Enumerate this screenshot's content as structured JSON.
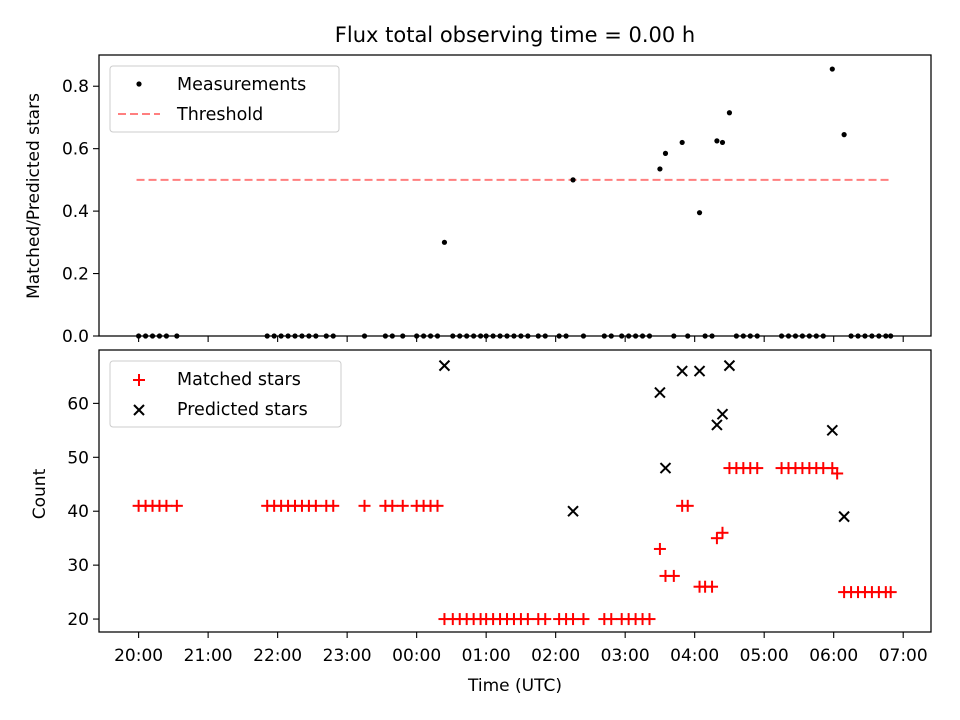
{
  "chart_data": [
    {
      "type": "scatter",
      "title": "Flux total observing time = 0.00 h",
      "xlabel": "",
      "ylabel": "Matched/Predicted stars",
      "ylim": [
        0,
        0.9
      ],
      "yticks": [
        0.0,
        0.2,
        0.4,
        0.6,
        0.8
      ],
      "ytick_labels": [
        "0.0",
        "0.2",
        "0.4",
        "0.6",
        "0.8"
      ],
      "xlim_hours": [
        19.43,
        31.4
      ],
      "grid": false,
      "legend_position": "top-left",
      "series": [
        {
          "name": "Measurements",
          "kind": "points",
          "color": "#000000",
          "x": [
            20.0,
            20.1,
            20.2,
            20.3,
            20.4,
            20.55,
            21.85,
            21.95,
            22.05,
            22.15,
            22.25,
            22.35,
            22.45,
            22.55,
            22.7,
            22.8,
            23.25,
            23.55,
            23.65,
            23.8,
            24.0,
            24.1,
            24.2,
            24.3,
            24.4,
            24.52,
            24.62,
            24.72,
            24.82,
            24.92,
            25.0,
            25.1,
            25.2,
            25.3,
            25.4,
            25.5,
            25.6,
            25.75,
            25.85,
            26.05,
            26.15,
            26.25,
            26.4,
            26.7,
            26.8,
            26.95,
            27.05,
            27.15,
            27.25,
            27.35,
            27.5,
            27.58,
            27.7,
            27.82,
            27.9,
            28.07,
            28.15,
            28.25,
            28.32,
            28.4,
            28.5,
            28.6,
            28.7,
            28.8,
            28.9,
            29.25,
            29.35,
            29.45,
            29.55,
            29.65,
            29.75,
            29.85,
            29.98,
            30.15,
            30.25,
            30.35,
            30.45,
            30.55,
            30.65,
            30.75,
            30.82
          ],
          "y": [
            0,
            0,
            0,
            0,
            0,
            0,
            0,
            0,
            0,
            0,
            0,
            0,
            0,
            0,
            0,
            0,
            0,
            0,
            0,
            0,
            0,
            0,
            0,
            0,
            0.3,
            0,
            0,
            0,
            0,
            0,
            0,
            0,
            0,
            0,
            0,
            0,
            0,
            0,
            0,
            0,
            0,
            0.5,
            0,
            0,
            0,
            0,
            0,
            0,
            0,
            0,
            0.535,
            0.585,
            0,
            0.62,
            0,
            0.395,
            0,
            0,
            0.625,
            0.62,
            0.715,
            0,
            0,
            0,
            0,
            0,
            0,
            0,
            0,
            0,
            0,
            0,
            0.855,
            0.645,
            0,
            0,
            0,
            0,
            0,
            0,
            0
          ]
        },
        {
          "name": "Threshold",
          "kind": "dashed-line",
          "color": "#ff7f7f",
          "x": [
            19.97,
            30.82
          ],
          "y": [
            0.5,
            0.5
          ]
        }
      ]
    },
    {
      "type": "scatter",
      "title": "",
      "xlabel": "Time (UTC)",
      "ylabel": "Count",
      "ylim": [
        17.6,
        69.9
      ],
      "yticks": [
        20,
        30,
        40,
        50,
        60
      ],
      "ytick_labels": [
        "20",
        "30",
        "40",
        "50",
        "60"
      ],
      "xlim_hours": [
        19.43,
        31.4
      ],
      "xticks_hours": [
        20,
        21,
        22,
        23,
        24,
        25,
        26,
        27,
        28,
        29,
        30,
        31
      ],
      "xtick_labels": [
        "20:00",
        "21:00",
        "22:00",
        "23:00",
        "00:00",
        "01:00",
        "02:00",
        "03:00",
        "04:00",
        "05:00",
        "06:00",
        "07:00"
      ],
      "grid": false,
      "legend_position": "top-left",
      "series": [
        {
          "name": "Matched stars",
          "kind": "plus",
          "color": "#ff0000",
          "x": [
            20.0,
            20.1,
            20.2,
            20.3,
            20.4,
            20.55,
            21.85,
            21.95,
            22.05,
            22.15,
            22.25,
            22.35,
            22.45,
            22.55,
            22.7,
            22.8,
            23.25,
            23.55,
            23.65,
            23.8,
            24.0,
            24.1,
            24.2,
            24.3,
            24.4,
            24.52,
            24.62,
            24.72,
            24.82,
            24.92,
            25.0,
            25.1,
            25.2,
            25.3,
            25.4,
            25.5,
            25.6,
            25.75,
            25.85,
            26.05,
            26.15,
            26.25,
            26.4,
            26.7,
            26.8,
            26.95,
            27.05,
            27.15,
            27.25,
            27.35,
            27.5,
            27.58,
            27.7,
            27.82,
            27.9,
            28.07,
            28.15,
            28.25,
            28.32,
            28.4,
            28.5,
            28.6,
            28.7,
            28.8,
            28.9,
            29.25,
            29.35,
            29.45,
            29.55,
            29.65,
            29.75,
            29.85,
            29.98,
            30.05,
            30.15,
            30.25,
            30.35,
            30.45,
            30.55,
            30.65,
            30.75,
            30.82
          ],
          "y": [
            41,
            41,
            41,
            41,
            41,
            41,
            41,
            41,
            41,
            41,
            41,
            41,
            41,
            41,
            41,
            41,
            41,
            41,
            41,
            41,
            41,
            41,
            41,
            41,
            20,
            20,
            20,
            20,
            20,
            20,
            20,
            20,
            20,
            20,
            20,
            20,
            20,
            20,
            20,
            20,
            20,
            20,
            20,
            20,
            20,
            20,
            20,
            20,
            20,
            20,
            33,
            28,
            28,
            41,
            41,
            26,
            26,
            26,
            35,
            36,
            48,
            48,
            48,
            48,
            48,
            48,
            48,
            48,
            48,
            48,
            48,
            48,
            48,
            47,
            25,
            25,
            25,
            25,
            25,
            25,
            25,
            25
          ]
        },
        {
          "name": "Predicted stars",
          "kind": "x",
          "color": "#000000",
          "x": [
            24.4,
            26.25,
            27.5,
            27.58,
            27.82,
            28.07,
            28.32,
            28.4,
            28.5,
            29.98,
            30.15
          ],
          "y": [
            67,
            40,
            62,
            48,
            66,
            66,
            56,
            58,
            67,
            55,
            39
          ]
        }
      ]
    }
  ]
}
